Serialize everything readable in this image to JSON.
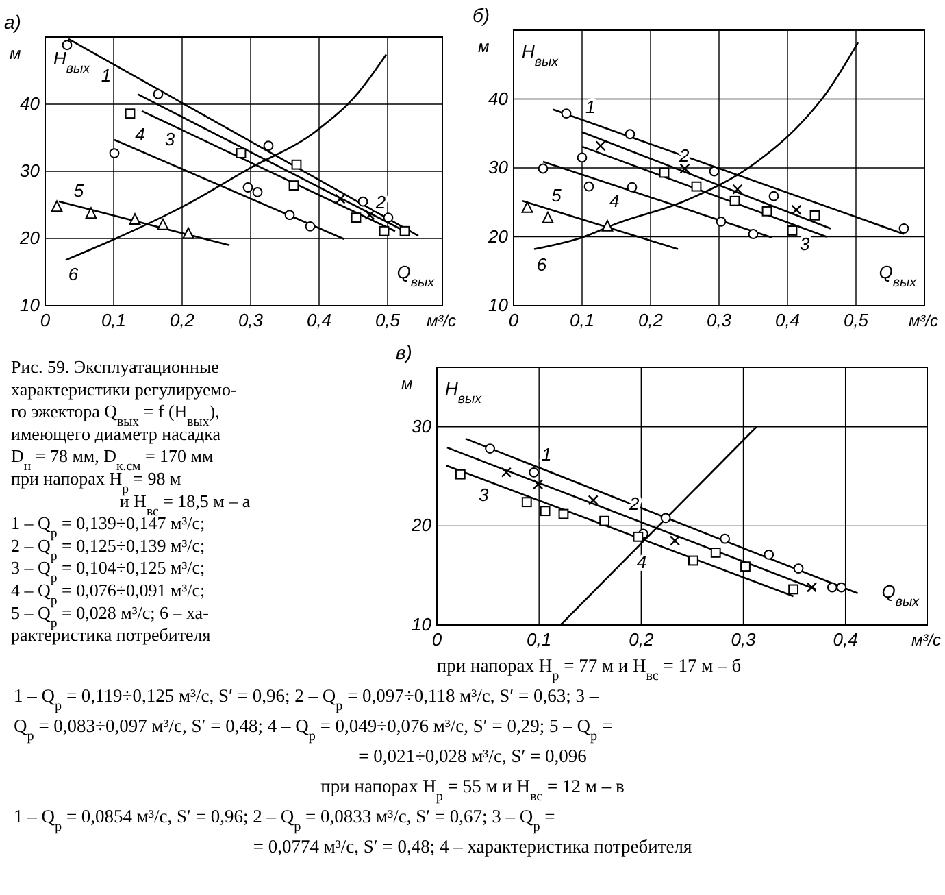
{
  "chart_data": [
    {
      "type": "line",
      "title": "а)",
      "xlabel": "м³/с",
      "ylabel": "м",
      "annotations": [
        "H$_{вых}$",
        "Q$_{вых}$",
        "Рис. 59. Эксплуатационные",
        "характеристики регулируемо-",
        "го эжектора Q$_{вых}$ = f (H$_{вых}$),",
        "имеющего диаметр насадка",
        "D$_{н}$ = 78 мм, D$_{к.см}$ = 170 мм",
        "при напорах H$_{р}$ = 98 м",
        "и H$_{вс}$ = 18,5 м – а",
        "1 – Q$_{р}$ = 0,139÷0,147 м³/с;",
        "2 – Q$_{р}$ = 0,125÷0,139 м³/с;",
        "3 – Q$_{р}$ = 0,104÷0,125 м³/с;",
        "4 – Q$_{р}$ = 0,076÷0,091 м³/с;",
        "5 – Q$_{р}$ = 0,028 м³/с; 6 – ха-",
        "рактеристика потребителя",
        "при напорах H$_{р}$ = 77 м и H$_{вс}$ = 17 м – б",
        "1 – Q$_{р}$ = 0,119÷0,125 м³/с, S′ = 0,96; 2 – Q$_{р}$ = 0,097÷0,118 м³/с, S′ = 0,63; 3 –",
        "Q$_{р}$ = 0,083÷0,097 м³/с, S′ = 0,48; 4 – Q$_{р}$ = 0,049÷0,076 м³/с, S′ = 0,29; 5 – Q$_{р}$ =",
        "= 0,021÷0,028 м³/с, S′ = 0,096",
        "при напорах H$_{р}$ = 55 м и H$_{вс}$ = 12 м – в",
        "1 – Q$_{р}$ = 0,0854 м³/с, S′ = 0,96; 2 – Q$_{р}$ = 0,0833 м³/с, S′ = 0,67; 3 – Q$_{р}$ =",
        "= 0,0774 м³/с, S′ = 0,48; 4 – характеристика потребителя"
      ],
      "xlim": [
        0,
        0.58
      ],
      "ylim": [
        10,
        50
      ],
      "xticks": [
        {
          "value": 0,
          "label": "0"
        },
        {
          "value": 0.1,
          "label": "0,1"
        },
        {
          "value": 0.2,
          "label": "0,2"
        },
        {
          "value": 0.3,
          "label": "0,3"
        },
        {
          "value": 0.4,
          "label": "0,4"
        },
        {
          "value": 0.5,
          "label": "0,5"
        }
      ],
      "yticks": [
        10,
        20,
        30,
        40
      ],
      "grid": true,
      "series": [
        {
          "type": "line",
          "name": "1",
          "color": "#000000",
          "x": [
            0.034,
            0.545
          ],
          "values": [
            49.7,
            20.4
          ]
        },
        {
          "type": "line",
          "name": "2",
          "color": "#000000",
          "x": [
            0.135,
            0.525
          ],
          "values": [
            41.5,
            21.1
          ]
        },
        {
          "type": "line",
          "name": "3",
          "color": "#000000",
          "x": [
            0.141,
            0.511
          ],
          "values": [
            39.0,
            21.1
          ]
        },
        {
          "type": "line",
          "name": "4",
          "color": "#000000",
          "x": [
            0.101,
            0.437
          ],
          "values": [
            34.7,
            19.9
          ]
        },
        {
          "type": "line",
          "name": "5",
          "color": "#000000",
          "x": [
            0.02,
            0.269
          ],
          "values": [
            25.5,
            19.0
          ]
        },
        {
          "type": "line",
          "name": "6",
          "color": "#000000",
          "x": [
            0.03,
            0.101,
            0.202,
            0.296,
            0.397,
            0.458,
            0.498
          ],
          "values": [
            16.8,
            19.9,
            24.8,
            30.3,
            36.1,
            41.8,
            47.4
          ]
        },
        {
          "type": "scatter",
          "marker": "circle",
          "color": "#000000",
          "x": [
            0.032,
            0.165,
            0.101,
            0.296,
            0.31,
            0.326,
            0.357,
            0.387,
            0.464,
            0.501
          ],
          "values": [
            48.8,
            41.5,
            32.7,
            27.6,
            26.9,
            33.8,
            23.5,
            21.8,
            25.5,
            23.1
          ]
        },
        {
          "type": "scatter",
          "marker": "square",
          "color": "#000000",
          "x": [
            0.124,
            0.286,
            0.367,
            0.363,
            0.454,
            0.495,
            0.525
          ],
          "values": [
            38.6,
            32.7,
            31.0,
            27.9,
            23.1,
            21.1,
            21.1
          ]
        },
        {
          "type": "scatter",
          "marker": "cross",
          "color": "#000000",
          "x": [
            0.431,
            0.474
          ],
          "values": [
            25.9,
            23.5
          ]
        },
        {
          "type": "scatter",
          "marker": "triangle",
          "color": "#000000",
          "x": [
            0.017,
            0.067,
            0.131,
            0.172,
            0.209
          ],
          "values": [
            24.7,
            23.7,
            22.8,
            22.0,
            20.7
          ]
        }
      ]
    },
    {
      "type": "line",
      "title": "б)",
      "xlabel": "м³/с",
      "ylabel": "м",
      "annotations": [
        "H$_{вых}$",
        "Q$_{вых}$"
      ],
      "xlim": [
        0,
        0.6
      ],
      "ylim": [
        10,
        50
      ],
      "xticks": [
        {
          "value": 0,
          "label": "0"
        },
        {
          "value": 0.1,
          "label": "0,1"
        },
        {
          "value": 0.2,
          "label": "0,2"
        },
        {
          "value": 0.3,
          "label": "0,3"
        },
        {
          "value": 0.4,
          "label": "0,4"
        },
        {
          "value": 0.5,
          "label": "0,5"
        }
      ],
      "yticks": [
        10,
        20,
        30,
        40
      ],
      "grid": true,
      "series": [
        {
          "type": "line",
          "name": "1",
          "color": "#000000",
          "x": [
            0.057,
            0.57
          ],
          "values": [
            38.5,
            20.4
          ]
        },
        {
          "type": "line",
          "name": "2",
          "color": "#000000",
          "x": [
            0.1,
            0.463
          ],
          "values": [
            35.2,
            21.2
          ]
        },
        {
          "type": "line",
          "name": "3",
          "color": "#000000",
          "x": [
            0.1,
            0.457
          ],
          "values": [
            33.1,
            20.0
          ]
        },
        {
          "type": "line",
          "name": "4",
          "color": "#000000",
          "x": [
            0.043,
            0.377
          ],
          "values": [
            30.9,
            19.9
          ]
        },
        {
          "type": "line",
          "name": "5",
          "color": "#000000",
          "x": [
            0.013,
            0.24
          ],
          "values": [
            25.2,
            18.2
          ]
        },
        {
          "type": "line",
          "name": "6",
          "color": "#000000",
          "x": [
            0.03,
            0.1,
            0.15,
            0.25,
            0.35,
            0.417,
            0.457,
            0.503
          ],
          "values": [
            18.2,
            19.9,
            21.9,
            25.2,
            30.5,
            36.2,
            40.9,
            48.2
          ]
        },
        {
          "type": "scatter",
          "marker": "circle",
          "color": "#000000",
          "x": [
            0.077,
            0.17,
            0.043,
            0.11,
            0.173,
            0.293,
            0.38,
            0.303,
            0.35,
            0.57,
            0.1
          ],
          "values": [
            37.9,
            34.9,
            29.9,
            27.3,
            27.2,
            29.5,
            25.9,
            22.2,
            20.4,
            21.2,
            31.5
          ]
        },
        {
          "type": "scatter",
          "marker": "square",
          "color": "#000000",
          "x": [
            0.22,
            0.267,
            0.323,
            0.37,
            0.407,
            0.44
          ],
          "values": [
            29.3,
            27.3,
            25.2,
            23.7,
            20.9,
            23.1
          ]
        },
        {
          "type": "scatter",
          "marker": "cross",
          "color": "#000000",
          "x": [
            0.127,
            0.25,
            0.327,
            0.413
          ],
          "values": [
            33.2,
            29.9,
            26.9,
            23.9
          ]
        },
        {
          "type": "scatter",
          "marker": "triangle",
          "color": "#000000",
          "x": [
            0.02,
            0.05,
            0.137
          ],
          "values": [
            24.2,
            22.7,
            21.5
          ]
        }
      ]
    },
    {
      "type": "line",
      "title": "в)",
      "xlabel": "м³/с",
      "ylabel": "м",
      "annotations": [
        "H$_{вых}$",
        "Q$_{вых}$"
      ],
      "xlim": [
        0,
        0.48
      ],
      "ylim": [
        10,
        36
      ],
      "xticks": [
        {
          "value": 0,
          "label": "0"
        },
        {
          "value": 0.1,
          "label": "0,1"
        },
        {
          "value": 0.2,
          "label": "0,2"
        },
        {
          "value": 0.3,
          "label": "0,3"
        },
        {
          "value": 0.4,
          "label": "0,4"
        }
      ],
      "yticks": [
        10,
        20,
        30
      ],
      "grid": true,
      "series": [
        {
          "type": "line",
          "name": "1",
          "color": "#000000",
          "x": [
            0.028,
            0.412
          ],
          "values": [
            28.8,
            13.2
          ]
        },
        {
          "type": "line",
          "name": "2",
          "color": "#000000",
          "x": [
            0.01,
            0.371
          ],
          "values": [
            27.9,
            13.6
          ]
        },
        {
          "type": "line",
          "name": "3",
          "color": "#000000",
          "x": [
            0.009,
            0.349
          ],
          "values": [
            26.1,
            12.9
          ]
        },
        {
          "type": "line",
          "name": "4",
          "color": "#000000",
          "x": [
            0.121,
            0.313
          ],
          "values": [
            10,
            30
          ]
        },
        {
          "type": "scatter",
          "marker": "circle",
          "color": "#000000",
          "x": [
            0.052,
            0.095,
            0.224,
            0.202,
            0.282,
            0.325,
            0.354,
            0.387,
            0.396
          ],
          "values": [
            27.8,
            25.4,
            20.8,
            19.2,
            18.7,
            17.1,
            15.7,
            13.8,
            13.8
          ]
        },
        {
          "type": "scatter",
          "marker": "square",
          "color": "#000000",
          "x": [
            0.023,
            0.088,
            0.106,
            0.124,
            0.164,
            0.197,
            0.251,
            0.273,
            0.302,
            0.349
          ],
          "values": [
            25.2,
            22.4,
            21.5,
            21.2,
            20.5,
            18.9,
            16.5,
            17.3,
            15.9,
            13.6
          ]
        },
        {
          "type": "scatter",
          "marker": "cross",
          "color": "#000000",
          "x": [
            0.068,
            0.099,
            0.153,
            0.233,
            0.367
          ],
          "values": [
            25.4,
            24.2,
            22.6,
            18.5,
            13.8
          ]
        }
      ]
    }
  ]
}
